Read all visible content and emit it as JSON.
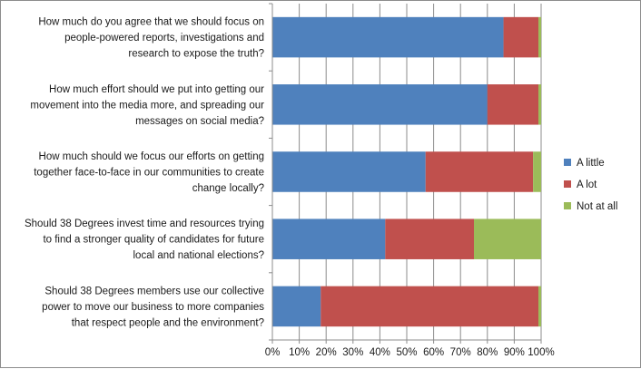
{
  "chart_data": {
    "type": "bar",
    "orientation": "horizontal",
    "stacked": "percent",
    "title": "",
    "xlabel": "",
    "ylabel": "",
    "xlim": [
      0,
      100
    ],
    "x_ticks": [
      "0%",
      "10%",
      "20%",
      "30%",
      "40%",
      "50%",
      "60%",
      "70%",
      "80%",
      "90%",
      "100%"
    ],
    "grid": "vertical",
    "legend_position": "right",
    "categories": [
      [
        "How much do you agree that we should focus on",
        "people-powered reports, investigations and",
        "research to expose the truth?"
      ],
      [
        "How much effort should we put into getting our",
        "movement into the media more, and spreading our",
        "messages on social media?"
      ],
      [
        "How much should we focus our efforts on getting",
        "together face-to-face in our communities to create",
        "change locally?"
      ],
      [
        "Should 38 Degrees invest time and resources trying",
        "to find a stronger quality of candidates for future",
        "local and national elections?"
      ],
      [
        "Should 38 Degrees members use our collective",
        "power to move our business to more companies",
        "that respect people and the environment?"
      ]
    ],
    "series": [
      {
        "name": "A little",
        "color": "#4f81bd",
        "values": [
          86,
          80,
          57,
          42,
          18
        ]
      },
      {
        "name": "A lot",
        "color": "#c0504d",
        "values": [
          13,
          19,
          40,
          33,
          81
        ]
      },
      {
        "name": "Not at all",
        "color": "#9bbb59",
        "values": [
          1,
          1,
          3,
          25,
          1
        ]
      }
    ]
  }
}
